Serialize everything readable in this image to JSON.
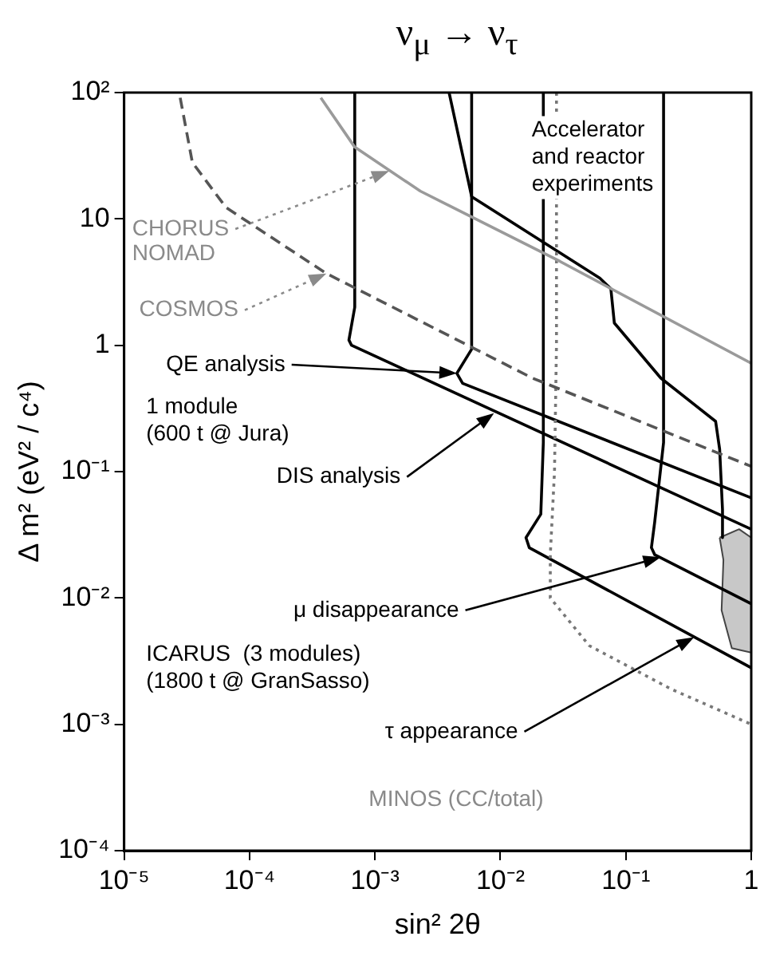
{
  "chart_data": {
    "type": "line",
    "title": "ν$_{μ}$ → ν$_{τ}$",
    "xlabel": "sin² 2θ",
    "ylabel": "Δ m² (eV² / c⁴)",
    "log": "xy",
    "grid": false,
    "legend": false,
    "xlim": [
      1e-05,
      1
    ],
    "xticks": [
      {
        "value": 1e-05,
        "label": "10⁻⁵"
      },
      {
        "value": 0.0001,
        "label": "10⁻⁴"
      },
      {
        "value": 0.001,
        "label": "10⁻³"
      },
      {
        "value": 0.01,
        "label": "10⁻²"
      },
      {
        "value": 0.1,
        "label": "10⁻¹"
      },
      1
    ],
    "ylim": [
      0.0001,
      100
    ],
    "yticks": [
      {
        "value": 0.0001,
        "label": "10⁻⁴"
      },
      {
        "value": 0.001,
        "label": "10⁻³"
      },
      {
        "value": 0.01,
        "label": "10⁻²"
      },
      {
        "value": 0.1,
        "label": "10⁻¹"
      },
      1,
      10,
      {
        "value": 100,
        "label": "10²"
      }
    ],
    "series": [
      {
        "type": "line",
        "color": "#9a9a9a",
        "line_style": "solid",
        "x": [
          0.00037,
          0.00069,
          0.0023,
          0.03,
          1
        ],
        "values": [
          91,
          37,
          16.6,
          4.6,
          0.72
        ]
      },
      {
        "type": "line",
        "color": "#555555",
        "line_style": "dashed",
        "x": [
          2.8e-05,
          3.5e-05,
          6.5e-05,
          0.00041,
          0.018,
          1
        ],
        "values": [
          91,
          28,
          12.3,
          3.7,
          0.55,
          0.11
        ]
      },
      {
        "type": "line",
        "color": "#777777",
        "line_style": "dotted",
        "x": [
          0.028,
          0.028,
          0.027,
          0.025,
          0.025,
          0.051,
          0.23,
          1
        ],
        "values": [
          100,
          1,
          0.1,
          0.022,
          0.01,
          0.0042,
          0.0019,
          0.001
        ]
      },
      {
        "type": "line",
        "color": "#000000",
        "line_style": "solid",
        "x": [
          0.00069,
          0.00069,
          0.00062,
          0.00065,
          1
        ],
        "values": [
          100,
          2,
          1.1,
          1,
          0.035
        ]
      },
      {
        "type": "line",
        "color": "#000000",
        "line_style": "solid",
        "x": [
          0.0059,
          0.0059,
          0.0059,
          0.0045,
          0.005,
          1
        ],
        "values": [
          100,
          10,
          0.93,
          0.6,
          0.5,
          0.062
        ]
      },
      {
        "type": "line",
        "color": "#000000",
        "line_style": "solid",
        "x": [
          0.0039,
          0.0059,
          0.062,
          0.076,
          0.081,
          0.19,
          0.52,
          0.56,
          0.59,
          0.59
        ],
        "values": [
          100,
          15,
          3.4,
          2.8,
          1.5,
          0.55,
          0.25,
          0.15,
          0.05,
          0.03
        ]
      },
      {
        "type": "line",
        "color": "#000000",
        "line_style": "solid",
        "x": [
          0.022,
          0.022,
          0.021,
          0.016,
          0.017,
          1
        ],
        "values": [
          100,
          0.17,
          0.046,
          0.03,
          0.025,
          0.0028
        ]
      },
      {
        "type": "line",
        "color": "#000000",
        "line_style": "solid",
        "x": [
          0.2,
          0.2,
          0.17,
          0.16,
          0.17,
          1
        ],
        "values": [
          100,
          0.17,
          0.04,
          0.025,
          0.022,
          0.009
        ]
      },
      {
        "type": "area",
        "color": "#c8c8c8",
        "line_style": "solid",
        "x": [
          0.56,
          0.6,
          0.58,
          0.7,
          1,
          1,
          0.8,
          0.56
        ],
        "values": [
          0.03,
          0.02,
          0.008,
          0.004,
          0.0037,
          0.03,
          0.035,
          0.03
        ]
      }
    ],
    "annotations": [
      "Accelerator\nand reactor\nexperiments",
      {
        "text": "CHORUS",
        "x": 0.0013,
        "y": 24
      },
      "NOMAD",
      {
        "text": "COSMOS",
        "x": 0.00041,
        "y": 3.7
      },
      {
        "text": "QE analysis",
        "x": 0.0045,
        "y": 0.6
      },
      "1 module\n(600 t @ Jura)",
      {
        "text": "DIS analysis",
        "x": 0.0089,
        "y": 0.29
      },
      {
        "text": "μ disappearance",
        "x": 0.19,
        "y": 0.021
      },
      "ICARUS  (3 modules)\n(1800 t @ GranSasso)",
      {
        "text": "τ appearance",
        "x": 0.35,
        "y": 0.0049
      },
      "MINOS (CC/total)"
    ]
  }
}
